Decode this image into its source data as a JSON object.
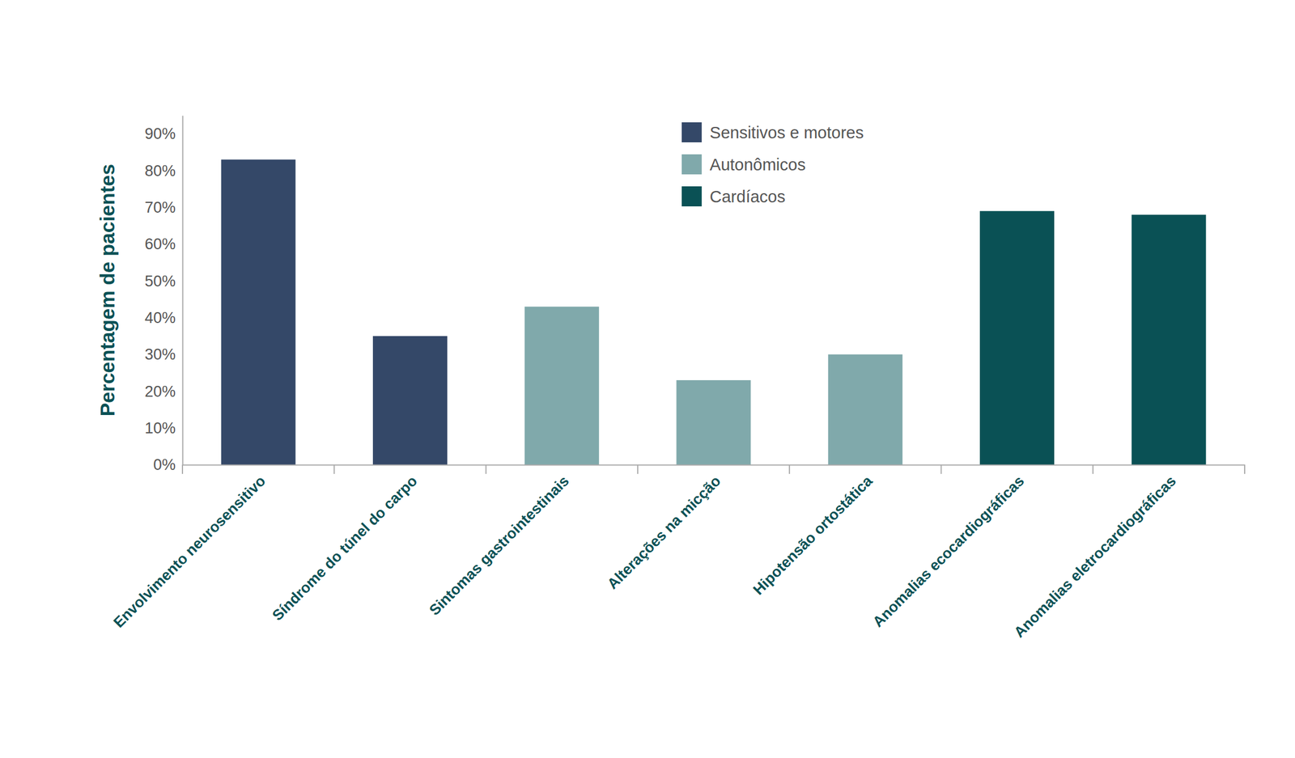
{
  "chart_data": {
    "type": "bar",
    "y_label": "Percentagem de pacientes",
    "categories": [
      "Envolvimento neurosensitivo",
      "Síndrome do túnel do carpo",
      "Sintomas gastrointestinais",
      "Alterações na micção",
      "Hipotensão ortostática",
      "Anomalias ecocardiográficas",
      "Anomalias eletrocardiográficas"
    ],
    "series": [
      {
        "name": "Sensitivos e motores",
        "color": "#344868",
        "values": [
          83,
          35,
          null,
          null,
          null,
          null,
          null
        ]
      },
      {
        "name": "Autonômicos",
        "color": "#80a9ab",
        "values": [
          null,
          null,
          43,
          23,
          30,
          null,
          null
        ]
      },
      {
        "name": "Cardíacos",
        "color": "#0a5155",
        "values": [
          null,
          null,
          null,
          null,
          null,
          69,
          68
        ]
      }
    ],
    "ylim": [
      0,
      95
    ],
    "yticks": [
      {
        "value": 0,
        "label": "0%"
      },
      {
        "value": 10,
        "label": "10%"
      },
      {
        "value": 20,
        "label": "20%"
      },
      {
        "value": 30,
        "label": "30%"
      },
      {
        "value": 40,
        "label": "40%"
      },
      {
        "value": 50,
        "label": "50%"
      },
      {
        "value": 60,
        "label": "60%"
      },
      {
        "value": 70,
        "label": "70%"
      },
      {
        "value": 80,
        "label": "80%"
      },
      {
        "value": 90,
        "label": "90%"
      }
    ],
    "grid": false,
    "legend": "top"
  }
}
